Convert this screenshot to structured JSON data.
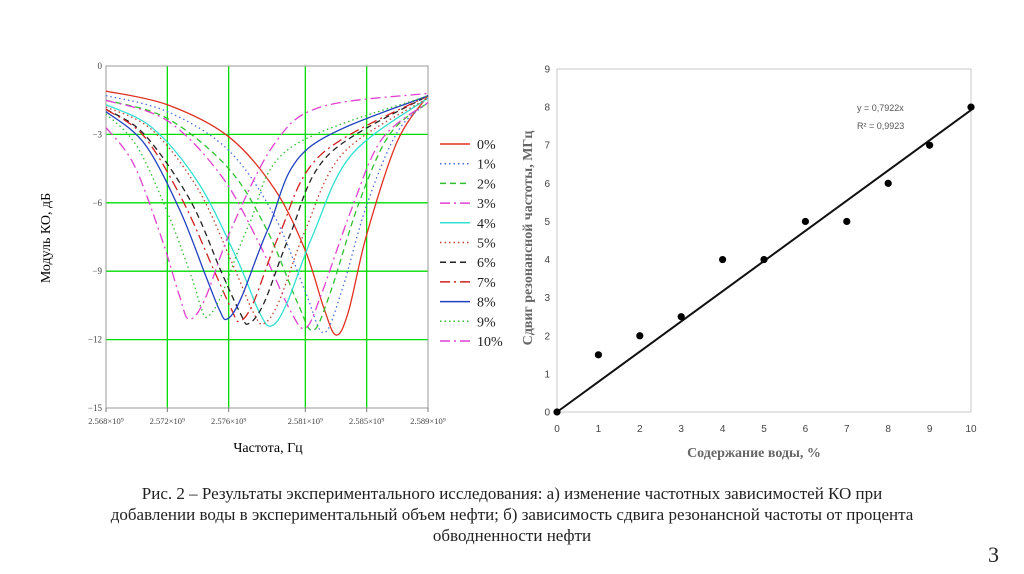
{
  "chart_data": [
    {
      "type": "line",
      "title": "",
      "xlabel": "Частота, Гц",
      "ylabel": "Модуль КО, дБ",
      "xlim": [
        2568000000,
        2589000000
      ],
      "ylim": [
        -15,
        0
      ],
      "x_ticks": [
        2568000000,
        2572000000,
        2576000000,
        2581000000,
        2585000000,
        2589000000
      ],
      "x_tick_labels": [
        "2.568×10⁹",
        "2.572×10⁹",
        "2.576×10⁹",
        "2.581×10⁹",
        "2.585×10⁹",
        "2.589×10⁹"
      ],
      "y_ticks": [
        0,
        -3,
        -6,
        -9,
        -12,
        -15
      ],
      "y_tick_labels": [
        "0",
        "−3",
        "−6",
        "−9",
        "−12",
        "−15"
      ],
      "grid": true,
      "grid_color": "#00dd00",
      "legend_position": "right",
      "series": [
        {
          "name": "0%",
          "color": "#e03020",
          "dash": "",
          "center": 2583000000,
          "min": -11.8,
          "points": [
            [
              2568000000,
              -1.1
            ],
            [
              2572000000,
              -1.7
            ],
            [
              2576000000,
              -3.1
            ],
            [
              2579000000,
              -5.4
            ],
            [
              2581000000,
              -8.1
            ],
            [
              2582200000,
              -10.6
            ],
            [
              2583000000,
              -11.8
            ],
            [
              2583800000,
              -10.8
            ],
            [
              2585000000,
              -7.4
            ],
            [
              2587000000,
              -3.3
            ],
            [
              2589000000,
              -1.3
            ]
          ]
        },
        {
          "name": "1%",
          "color": "#4a6fe0",
          "dash": "1.5 3",
          "center": 2582200000,
          "min": -11.7,
          "points": [
            [
              2568000000,
              -1.3
            ],
            [
              2572000000,
              -2.0
            ],
            [
              2576000000,
              -3.7
            ],
            [
              2579000000,
              -6.6
            ],
            [
              2581000000,
              -9.9
            ],
            [
              2582200000,
              -11.7
            ],
            [
              2583400000,
              -9.8
            ],
            [
              2585000000,
              -6.1
            ],
            [
              2587000000,
              -2.9
            ],
            [
              2589000000,
              -1.6
            ]
          ]
        },
        {
          "name": "2%",
          "color": "#30c030",
          "dash": "6 4",
          "center": 2581500000,
          "min": -11.6,
          "points": [
            [
              2568000000,
              -1.5
            ],
            [
              2572000000,
              -2.3
            ],
            [
              2576000000,
              -4.5
            ],
            [
              2578500000,
              -7.2
            ],
            [
              2580500000,
              -10.4
            ],
            [
              2581500000,
              -11.6
            ],
            [
              2582600000,
              -10.0
            ],
            [
              2584500000,
              -6.0
            ],
            [
              2586500000,
              -3.0
            ],
            [
              2589000000,
              -1.6
            ]
          ]
        },
        {
          "name": "3%",
          "color": "#e040d0",
          "dash": "10 4 2 4",
          "center": 2581000000,
          "min": -11.5,
          "points": [
            [
              2568000000,
              -1.5
            ],
            [
              2572000000,
              -2.4
            ],
            [
              2575500000,
              -4.8
            ],
            [
              2578000000,
              -7.8
            ],
            [
              2580000000,
              -10.7
            ],
            [
              2581000000,
              -11.5
            ],
            [
              2582000000,
              -10.1
            ],
            [
              2584000000,
              -6.3
            ],
            [
              2586000000,
              -3.2
            ],
            [
              2589000000,
              -1.6
            ]
          ]
        },
        {
          "name": "4%",
          "color": "#30e0d0",
          "dash": "",
          "center": 2578800000,
          "min": -11.4,
          "points": [
            [
              2568000000,
              -1.7
            ],
            [
              2571000000,
              -2.7
            ],
            [
              2574000000,
              -5.1
            ],
            [
              2576500000,
              -8.4
            ],
            [
              2578000000,
              -10.8
            ],
            [
              2578800000,
              -11.4
            ],
            [
              2579800000,
              -10.4
            ],
            [
              2581500000,
              -7.4
            ],
            [
              2584000000,
              -3.9
            ],
            [
              2589000000,
              -1.4
            ]
          ]
        },
        {
          "name": "5%",
          "color": "#c04030",
          "dash": "1.5 3",
          "center": 2578300000,
          "min": -11.3,
          "points": [
            [
              2568000000,
              -1.8
            ],
            [
              2571000000,
              -2.8
            ],
            [
              2574000000,
              -5.4
            ],
            [
              2576200000,
              -8.6
            ],
            [
              2577600000,
              -10.8
            ],
            [
              2578300000,
              -11.3
            ],
            [
              2579300000,
              -10.3
            ],
            [
              2581000000,
              -7.2
            ],
            [
              2583500000,
              -3.8
            ],
            [
              2589000000,
              -1.4
            ]
          ]
        },
        {
          "name": "6%",
          "color": "#222222",
          "dash": "6 4",
          "center": 2577300000,
          "min": -11.3,
          "points": [
            [
              2568000000,
              -1.9
            ],
            [
              2570500000,
              -3.0
            ],
            [
              2573500000,
              -5.9
            ],
            [
              2575500000,
              -9.0
            ],
            [
              2576800000,
              -10.9
            ],
            [
              2577300000,
              -11.3
            ],
            [
              2578300000,
              -10.4
            ],
            [
              2580000000,
              -7.4
            ],
            [
              2582500000,
              -3.9
            ],
            [
              2589000000,
              -1.3
            ]
          ]
        },
        {
          "name": "7%",
          "color": "#d02020",
          "dash": "10 4 2 4",
          "center": 2576700000,
          "min": -11.2,
          "points": [
            [
              2568000000,
              -1.9
            ],
            [
              2570500000,
              -3.1
            ],
            [
              2573000000,
              -5.9
            ],
            [
              2575000000,
              -8.9
            ],
            [
              2576200000,
              -10.7
            ],
            [
              2576700000,
              -11.2
            ],
            [
              2577600000,
              -10.4
            ],
            [
              2579300000,
              -7.4
            ],
            [
              2582000000,
              -3.9
            ],
            [
              2589000000,
              -1.3
            ]
          ]
        },
        {
          "name": "8%",
          "color": "#2040c0",
          "dash": "",
          "center": 2575900000,
          "min": -11.1,
          "points": [
            [
              2568000000,
              -2.0
            ],
            [
              2570500000,
              -3.4
            ],
            [
              2572800000,
              -6.3
            ],
            [
              2574500000,
              -9.2
            ],
            [
              2575400000,
              -10.7
            ],
            [
              2575900000,
              -11.1
            ],
            [
              2576800000,
              -10.2
            ],
            [
              2578600000,
              -7.1
            ],
            [
              2581200000,
              -3.6
            ],
            [
              2589000000,
              -1.3
            ]
          ]
        },
        {
          "name": "9%",
          "color": "#30c030",
          "dash": "1.5 3",
          "center": 2574600000,
          "min": -11.0,
          "points": [
            [
              2568000000,
              -2.1
            ],
            [
              2570000000,
              -3.5
            ],
            [
              2572000000,
              -6.4
            ],
            [
              2573600000,
              -9.3
            ],
            [
              2574200000,
              -10.6
            ],
            [
              2574600000,
              -11.0
            ],
            [
              2575500000,
              -10.1
            ],
            [
              2577300000,
              -7.0
            ],
            [
              2580000000,
              -3.6
            ],
            [
              2589000000,
              -1.3
            ]
          ]
        },
        {
          "name": "10%",
          "color": "#e040d0",
          "dash": "10 4 2 4",
          "center": 2573400000,
          "min": -11.1,
          "points": [
            [
              2568000000,
              -2.7
            ],
            [
              2569800000,
              -4.3
            ],
            [
              2571600000,
              -7.5
            ],
            [
              2572800000,
              -10.1
            ],
            [
              2573400000,
              -11.1
            ],
            [
              2574400000,
              -10.3
            ],
            [
              2576200000,
              -7.1
            ],
            [
              2579000000,
              -3.4
            ],
            [
              2582000000,
              -1.8
            ],
            [
              2589000000,
              -1.2
            ]
          ]
        }
      ]
    },
    {
      "type": "scatter",
      "title": "",
      "xlabel": "Содержание воды, %",
      "ylabel": "Сдвиг резонансной частоты, МГц",
      "xlim": [
        0,
        10
      ],
      "ylim": [
        0,
        9
      ],
      "x_ticks": [
        0,
        1,
        2,
        3,
        4,
        5,
        6,
        7,
        8,
        9,
        10
      ],
      "y_ticks": [
        0,
        1,
        2,
        3,
        4,
        5,
        6,
        7,
        8,
        9
      ],
      "grid": false,
      "x": [
        0,
        1,
        2,
        3,
        4,
        5,
        6,
        7,
        8,
        9,
        10
      ],
      "y": [
        0,
        1.5,
        2,
        2.5,
        4,
        4,
        5,
        5,
        6,
        7,
        8
      ],
      "trendline": {
        "type": "linear",
        "slope": 0.7922,
        "intercept": 0,
        "equation": "y = 0,7922x",
        "r2": "R² = 0,9923"
      }
    }
  ],
  "caption": "Рис. 2 – Результаты экспериментального исследования: а) изменение частотных зависимостей КО при добавлении воды в экспериментальный объем нефти; б) зависимость сдвига резонансной частоты от процента обводненности нефти",
  "page_number": "3"
}
